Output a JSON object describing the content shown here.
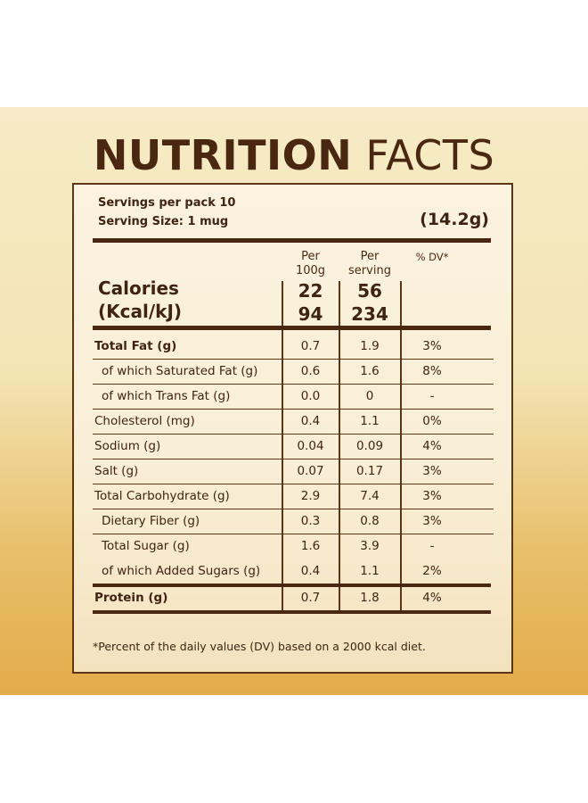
{
  "title": {
    "bold": "NUTRITION",
    "light": "FACTS"
  },
  "servings_per_pack": "Servings per pack 10",
  "serving_size": "Serving Size: 1 mug",
  "serving_grams": "(14.2g)",
  "columns": {
    "per100g_l1": "Per",
    "per100g_l2": "100g",
    "perserving_l1": "Per",
    "perserving_l2": "serving",
    "dv": "% DV*"
  },
  "calories": {
    "label_l1": "Calories",
    "label_l2": "(Kcal/kJ)",
    "kcal_100g": "22",
    "kcal_serving": "56",
    "kj_100g": "94",
    "kj_serving": "234"
  },
  "rows": [
    {
      "name": "Total Fat (g)",
      "per100g": "0.7",
      "perserving": "1.9",
      "dv": "3%"
    },
    {
      "name": "of which Saturated Fat (g)",
      "per100g": "0.6",
      "perserving": "1.6",
      "dv": "8%"
    },
    {
      "name": "of which Trans Fat (g)",
      "per100g": "0.0",
      "perserving": "0",
      "dv": "-"
    },
    {
      "name": "Cholesterol (mg)",
      "per100g": "0.4",
      "perserving": "1.1",
      "dv": "0%"
    },
    {
      "name": "Sodium (g)",
      "per100g": "0.04",
      "perserving": "0.09",
      "dv": "4%"
    },
    {
      "name": "Salt (g)",
      "per100g": "0.07",
      "perserving": "0.17",
      "dv": "3%"
    },
    {
      "name": "Total Carbohydrate (g)",
      "per100g": "2.9",
      "perserving": "7.4",
      "dv": "3%"
    },
    {
      "name": "Dietary Fiber (g)",
      "per100g": "0.3",
      "perserving": "0.8",
      "dv": "3%"
    },
    {
      "name": "Total Sugar (g)",
      "per100g": "1.6",
      "perserving": "3.9",
      "dv": "-"
    },
    {
      "name": "of which Added Sugars (g)",
      "per100g": "0.4",
      "perserving": "1.1",
      "dv": "2%"
    },
    {
      "name": "Protein (g)",
      "per100g": "0.7",
      "perserving": "1.8",
      "dv": "4%"
    }
  ],
  "footnote": "*Percent of the daily values (DV) based on a 2000 kcal diet."
}
